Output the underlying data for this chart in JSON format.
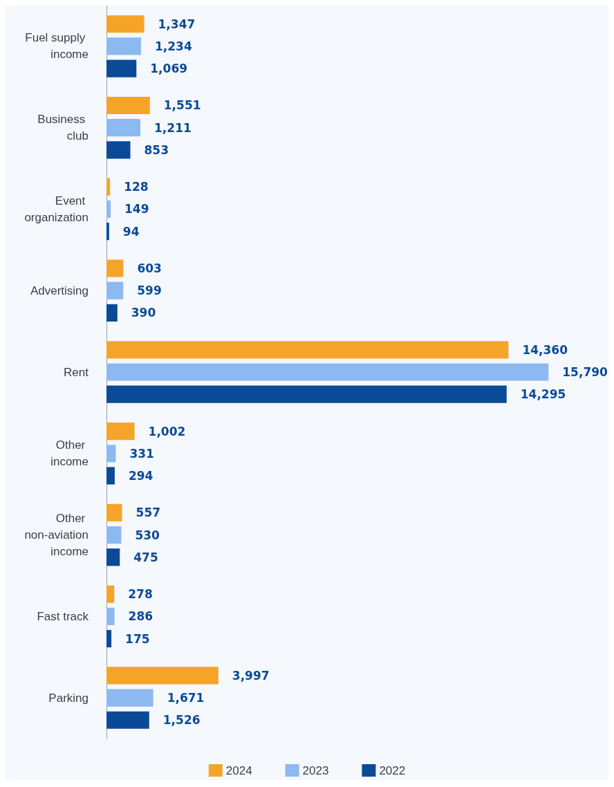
{
  "chart_data": {
    "type": "bar",
    "orientation": "horizontal",
    "categories": [
      "Fuel supply income",
      "Business club",
      "Event organization",
      "Advertising",
      "Rent",
      "Other income",
      "Other non-aviation income",
      "Fast track",
      "Parking"
    ],
    "series": [
      {
        "name": "2024",
        "color": "#f5a42a",
        "values": [
          1347,
          1551,
          128,
          603,
          14360,
          1002,
          557,
          278,
          3997
        ],
        "value_labels": [
          "1,347",
          "1,551",
          "128",
          "603",
          "14,360",
          "1,002",
          "557",
          "278",
          "3,997"
        ]
      },
      {
        "name": "2023",
        "color": "#8cbaf0",
        "values": [
          1234,
          1211,
          149,
          599,
          15790,
          331,
          530,
          286,
          1671
        ],
        "value_labels": [
          "1,234",
          "1,211",
          "149",
          "599",
          "15,790",
          "331",
          "530",
          "286",
          "1,671"
        ]
      },
      {
        "name": "2022",
        "color": "#0a4a96",
        "values": [
          1069,
          853,
          94,
          390,
          14295,
          294,
          475,
          175,
          1526
        ],
        "value_labels": [
          "1,069",
          "853",
          "94",
          "390",
          "14,295",
          "294",
          "475",
          "175",
          "1,526"
        ]
      }
    ],
    "legend": "bottom",
    "tick_labels": "y",
    "grid": false
  }
}
